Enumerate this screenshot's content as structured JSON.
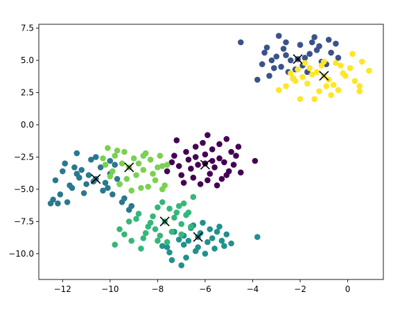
{
  "chart_data": {
    "type": "scatter",
    "title": "",
    "xlabel": "",
    "ylabel": "",
    "xlim": [
      -13.0,
      1.5
    ],
    "ylim": [
      -12.0,
      7.8
    ],
    "grid": false,
    "legend": "none",
    "x_ticks": [
      -12,
      -10,
      -8,
      -6,
      -4,
      -2,
      0
    ],
    "x_tick_labels": [
      "−12",
      "−10",
      "−8",
      "−6",
      "−4",
      "−2",
      "0"
    ],
    "y_ticks": [
      -10.0,
      -7.5,
      -5.0,
      -2.5,
      0.0,
      2.5,
      5.0,
      7.5
    ],
    "y_tick_labels": [
      "−10.0",
      "−7.5",
      "−5.0",
      "−2.5",
      "0.0",
      "2.5",
      "5.0",
      "7.5"
    ],
    "series": [
      {
        "color": "#440154",
        "points": [
          [
            -6.0,
            -3.0
          ],
          [
            -5.4,
            -2.6
          ],
          [
            -6.6,
            -3.4
          ],
          [
            -5.0,
            -3.6
          ],
          [
            -5.7,
            -1.9
          ],
          [
            -6.8,
            -2.1
          ],
          [
            -7.0,
            -3.9
          ],
          [
            -6.2,
            -4.6
          ],
          [
            -5.3,
            -4.2
          ],
          [
            -4.7,
            -2.4
          ],
          [
            -4.5,
            -3.7
          ],
          [
            -4.6,
            -1.7
          ],
          [
            -5.9,
            -0.8
          ],
          [
            -6.4,
            -1.7
          ],
          [
            -7.4,
            -2.9
          ],
          [
            -7.6,
            -3.6
          ],
          [
            -7.2,
            -1.2
          ],
          [
            -3.9,
            -2.8
          ],
          [
            -5.1,
            -1.1
          ],
          [
            -5.5,
            -4.7
          ],
          [
            -6.0,
            -2.3
          ],
          [
            -5.8,
            -3.8
          ],
          [
            -6.7,
            -2.7
          ],
          [
            -5.2,
            -2.9
          ],
          [
            -5.6,
            -3.3
          ],
          [
            -6.3,
            -3.1
          ],
          [
            -4.9,
            -2.1
          ],
          [
            -6.5,
            -4.1
          ],
          [
            -7.1,
            -3.2
          ],
          [
            -5.4,
            -1.5
          ],
          [
            -6.1,
            -1.4
          ],
          [
            -4.8,
            -3.1
          ],
          [
            -7.3,
            -2.4
          ],
          [
            -6.9,
            -4.5
          ],
          [
            -5.9,
            -4.3
          ],
          [
            -5.1,
            -3.9
          ],
          [
            -6.4,
            -2.5
          ],
          [
            -5.7,
            -2.8
          ]
        ]
      },
      {
        "color": "#3b528b",
        "points": [
          [
            -2.1,
            5.1
          ],
          [
            -2.7,
            5.9
          ],
          [
            -1.6,
            5.5
          ],
          [
            -1.2,
            6.1
          ],
          [
            -3.1,
            4.4
          ],
          [
            -2.5,
            4.1
          ],
          [
            -1.9,
            4.6
          ],
          [
            -0.7,
            5.6
          ],
          [
            -0.4,
            5.2
          ],
          [
            -2.9,
            6.9
          ],
          [
            -4.5,
            6.4
          ],
          [
            -3.5,
            5.6
          ],
          [
            -3.3,
            3.8
          ],
          [
            -2.3,
            3.6
          ],
          [
            -1.4,
            6.8
          ],
          [
            -0.8,
            6.6
          ],
          [
            -1.7,
            4.1
          ],
          [
            -2.6,
            6.4
          ],
          [
            -3.6,
            4.7
          ],
          [
            -2.0,
            6.2
          ],
          [
            -1.1,
            4.9
          ],
          [
            -3.0,
            5.3
          ],
          [
            -2.4,
            5.0
          ],
          [
            -3.8,
            3.5
          ],
          [
            -1.3,
            5.8
          ],
          [
            -2.8,
            4.5
          ],
          [
            -0.5,
            6.3
          ],
          [
            -3.4,
            6.0
          ],
          [
            -1.8,
            5.2
          ],
          [
            -2.2,
            4.3
          ],
          [
            -0.9,
            4.7
          ],
          [
            -3.2,
            5.0
          ],
          [
            -2.6,
            5.4
          ],
          [
            -1.5,
            6.4
          ]
        ]
      },
      {
        "color": "#2a788e",
        "points": [
          [
            -10.6,
            -4.2
          ],
          [
            -11.2,
            -3.5
          ],
          [
            -10.0,
            -3.8
          ],
          [
            -11.6,
            -4.9
          ],
          [
            -12.1,
            -5.4
          ],
          [
            -12.5,
            -6.1
          ],
          [
            -11.9,
            -3.0
          ],
          [
            -10.3,
            -5.1
          ],
          [
            -9.6,
            -4.6
          ],
          [
            -11.4,
            -2.2
          ],
          [
            -10.8,
            -2.7
          ],
          [
            -9.4,
            -5.7
          ],
          [
            -10.1,
            -4.9
          ],
          [
            -11.0,
            -4.6
          ],
          [
            -12.3,
            -4.3
          ],
          [
            -11.8,
            -6.0
          ],
          [
            -9.1,
            -6.3
          ],
          [
            -9.8,
            -3.1
          ],
          [
            -10.9,
            -3.9
          ],
          [
            -11.3,
            -4.1
          ],
          [
            -12.0,
            -3.6
          ],
          [
            -10.4,
            -3.3
          ],
          [
            -9.7,
            -4.2
          ],
          [
            -11.1,
            -5.3
          ],
          [
            -12.4,
            -5.8
          ],
          [
            -10.6,
            -2.5
          ],
          [
            -9.9,
            -5.4
          ],
          [
            -11.5,
            -3.3
          ],
          [
            -10.2,
            -4.5
          ],
          [
            -12.2,
            -6.1
          ],
          [
            -11.7,
            -4.7
          ],
          [
            -9.5,
            -6.0
          ],
          [
            -9.2,
            -6.6
          ],
          [
            -10.0,
            -2.8
          ],
          [
            -10.7,
            -4.4
          ],
          [
            -11.4,
            -3.8
          ]
        ]
      },
      {
        "color": "#21918c",
        "points": [
          [
            -6.3,
            -8.7
          ],
          [
            -5.8,
            -8.1
          ],
          [
            -6.9,
            -9.3
          ],
          [
            -5.3,
            -9.0
          ],
          [
            -6.6,
            -8.0
          ],
          [
            -7.1,
            -8.9
          ],
          [
            -7.4,
            -10.5
          ],
          [
            -7.0,
            -10.9
          ],
          [
            -6.4,
            -9.8
          ],
          [
            -5.6,
            -9.6
          ],
          [
            -4.9,
            -9.2
          ],
          [
            -3.8,
            -8.7
          ],
          [
            -6.1,
            -7.6
          ],
          [
            -5.4,
            -7.9
          ],
          [
            -7.6,
            -9.5
          ],
          [
            -6.8,
            -10.3
          ],
          [
            -5.9,
            -9.1
          ],
          [
            -6.2,
            -8.4
          ],
          [
            -5.1,
            -8.5
          ],
          [
            -7.3,
            -8.3
          ],
          [
            -6.7,
            -9.0
          ],
          [
            -5.7,
            -8.8
          ],
          [
            -6.0,
            -10.0
          ],
          [
            -7.8,
            -9.4
          ],
          [
            -6.5,
            -7.8
          ],
          [
            -5.2,
            -9.4
          ],
          [
            -6.9,
            -8.6
          ],
          [
            -7.5,
            -9.9
          ],
          [
            -5.5,
            -8.3
          ],
          [
            -6.3,
            -9.5
          ]
        ]
      },
      {
        "color": "#35b779",
        "points": [
          [
            -7.7,
            -7.5
          ],
          [
            -8.4,
            -7.9
          ],
          [
            -7.2,
            -6.8
          ],
          [
            -8.0,
            -6.4
          ],
          [
            -7.0,
            -7.7
          ],
          [
            -8.9,
            -7.3
          ],
          [
            -9.4,
            -8.5
          ],
          [
            -9.8,
            -9.3
          ],
          [
            -8.6,
            -8.8
          ],
          [
            -7.4,
            -8.3
          ],
          [
            -6.9,
            -6.1
          ],
          [
            -7.9,
            -8.6
          ],
          [
            -8.2,
            -7.1
          ],
          [
            -7.5,
            -6.5
          ],
          [
            -8.7,
            -9.6
          ],
          [
            -9.1,
            -9.0
          ],
          [
            -7.3,
            -7.2
          ],
          [
            -8.5,
            -8.4
          ],
          [
            -6.7,
            -6.8
          ],
          [
            -7.8,
            -6.0
          ],
          [
            -8.1,
            -8.1
          ],
          [
            -6.5,
            -5.6
          ],
          [
            -9.2,
            -7.5
          ],
          [
            -8.8,
            -6.9
          ],
          [
            -7.6,
            -9.1
          ],
          [
            -6.8,
            -7.0
          ],
          [
            -7.1,
            -6.3
          ],
          [
            -8.3,
            -7.6
          ],
          [
            -9.6,
            -8.1
          ],
          [
            -7.0,
            -8.5
          ],
          [
            -8.0,
            -9.0
          ],
          [
            -6.6,
            -7.9
          ]
        ]
      },
      {
        "color": "#7ad151",
        "points": [
          [
            -9.2,
            -3.3
          ],
          [
            -9.8,
            -2.4
          ],
          [
            -8.5,
            -2.2
          ],
          [
            -8.9,
            -3.9
          ],
          [
            -9.6,
            -4.6
          ],
          [
            -8.1,
            -4.3
          ],
          [
            -7.8,
            -3.2
          ],
          [
            -10.2,
            -3.1
          ],
          [
            -10.1,
            -1.8
          ],
          [
            -9.4,
            -2.1
          ],
          [
            -8.3,
            -2.7
          ],
          [
            -7.7,
            -4.7
          ],
          [
            -8.7,
            -4.9
          ],
          [
            -9.1,
            -5.1
          ],
          [
            -8.6,
            -3.5
          ],
          [
            -9.9,
            -3.6
          ],
          [
            -8.0,
            -3.3
          ],
          [
            -7.6,
            -3.1
          ],
          [
            -9.5,
            -3.0
          ],
          [
            -8.4,
            -4.8
          ],
          [
            -10.3,
            -2.6
          ],
          [
            -9.0,
            -2.6
          ],
          [
            -8.8,
            -3.0
          ],
          [
            -9.3,
            -4.2
          ],
          [
            -7.9,
            -2.4
          ],
          [
            -10.0,
            -4.0
          ],
          [
            -8.2,
            -3.8
          ],
          [
            -9.7,
            -2.0
          ],
          [
            -8.6,
            -2.4
          ],
          [
            -7.8,
            -5.0
          ]
        ]
      },
      {
        "color": "#fde725",
        "points": [
          [
            -1.0,
            3.8
          ],
          [
            -0.3,
            4.6
          ],
          [
            -1.7,
            3.2
          ],
          [
            -0.6,
            3.1
          ],
          [
            0.2,
            5.5
          ],
          [
            0.9,
            4.2
          ],
          [
            0.5,
            3.0
          ],
          [
            0.5,
            2.6
          ],
          [
            -1.4,
            2.0
          ],
          [
            -2.0,
            2.0
          ],
          [
            -2.9,
            2.7
          ],
          [
            -1.1,
            4.6
          ],
          [
            -1.8,
            4.8
          ],
          [
            -0.1,
            3.8
          ],
          [
            -2.2,
            3.4
          ],
          [
            -1.3,
            4.1
          ],
          [
            -0.8,
            3.5
          ],
          [
            -0.4,
            2.7
          ],
          [
            -1.9,
            3.7
          ],
          [
            -2.4,
            4.0
          ],
          [
            -0.2,
            4.0
          ],
          [
            0.3,
            3.4
          ],
          [
            -0.7,
            2.3
          ],
          [
            -1.5,
            3.9
          ],
          [
            -2.1,
            4.3
          ],
          [
            -1.2,
            2.6
          ],
          [
            -0.5,
            4.8
          ],
          [
            0.1,
            4.4
          ],
          [
            -1.6,
            4.4
          ],
          [
            -2.6,
            3.0
          ],
          [
            -0.9,
            3.0
          ],
          [
            0.6,
            4.9
          ],
          [
            -1.0,
            4.9
          ],
          [
            -2.3,
            3.6
          ]
        ]
      }
    ],
    "centroids": [
      [
        -6.0,
        -3.1
      ],
      [
        -2.1,
        5.1
      ],
      [
        -10.6,
        -4.2
      ],
      [
        -6.3,
        -8.7
      ],
      [
        -7.7,
        -7.5
      ],
      [
        -9.2,
        -3.3
      ],
      [
        -1.0,
        3.8
      ]
    ],
    "centroid_marker": "x",
    "centroid_color": "#000000"
  }
}
